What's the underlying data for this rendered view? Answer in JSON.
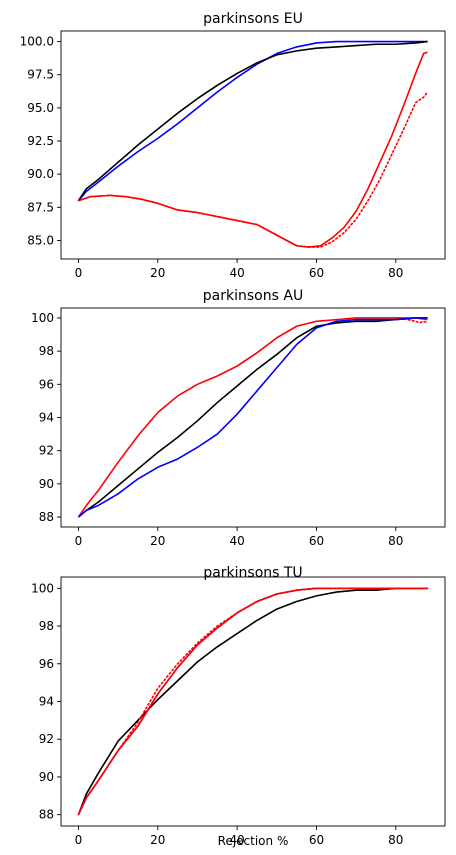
{
  "chart_data": [
    {
      "type": "line",
      "title": "parkinsons EU",
      "xlabel": "",
      "ylabel": "",
      "xlim": [
        -4.4,
        92.4
      ],
      "ylim": [
        83.6,
        100.8
      ],
      "xticks": [
        0,
        20,
        40,
        60,
        80
      ],
      "xtick_labels": [
        "0",
        "20",
        "40",
        "60",
        "80"
      ],
      "yticks": [
        85.0,
        87.5,
        90.0,
        92.5,
        95.0,
        97.5,
        100.0
      ],
      "ytick_labels": [
        "85.0",
        "87.5",
        "90.0",
        "92.5",
        "95.0",
        "97.5",
        "100.0"
      ],
      "series": [
        {
          "color": "#0000ff",
          "dash": "solid",
          "points": [
            [
              0,
              88.0
            ],
            [
              2,
              88.7
            ],
            [
              5,
              89.4
            ],
            [
              10,
              90.6
            ],
            [
              15,
              91.7
            ],
            [
              20,
              92.7
            ],
            [
              25,
              93.8
            ],
            [
              30,
              95.0
            ],
            [
              35,
              96.2
            ],
            [
              40,
              97.3
            ],
            [
              45,
              98.3
            ],
            [
              50,
              99.1
            ],
            [
              55,
              99.6
            ],
            [
              60,
              99.9
            ],
            [
              65,
              100.0
            ],
            [
              70,
              100.0
            ],
            [
              75,
              100.0
            ],
            [
              80,
              100.0
            ],
            [
              85,
              100.0
            ],
            [
              88,
              100.0
            ]
          ]
        },
        {
          "color": "#000000",
          "dash": "solid",
          "points": [
            [
              0,
              88.0
            ],
            [
              2,
              88.9
            ],
            [
              5,
              89.6
            ],
            [
              10,
              90.9
            ],
            [
              15,
              92.2
            ],
            [
              20,
              93.4
            ],
            [
              25,
              94.6
            ],
            [
              30,
              95.7
            ],
            [
              35,
              96.7
            ],
            [
              40,
              97.6
            ],
            [
              45,
              98.4
            ],
            [
              50,
              99.0
            ],
            [
              55,
              99.3
            ],
            [
              60,
              99.5
            ],
            [
              65,
              99.6
            ],
            [
              70,
              99.7
            ],
            [
              75,
              99.8
            ],
            [
              80,
              99.8
            ],
            [
              85,
              99.9
            ],
            [
              88,
              100.0
            ]
          ]
        },
        {
          "color": "#ff0000",
          "dash": "solid",
          "points": [
            [
              0,
              88.0
            ],
            [
              3,
              88.3
            ],
            [
              8,
              88.4
            ],
            [
              12,
              88.3
            ],
            [
              16,
              88.1
            ],
            [
              20,
              87.8
            ],
            [
              25,
              87.3
            ],
            [
              30,
              87.1
            ],
            [
              35,
              86.8
            ],
            [
              40,
              86.5
            ],
            [
              45,
              86.2
            ],
            [
              50,
              85.4
            ],
            [
              55,
              84.6
            ],
            [
              58,
              84.5
            ],
            [
              61,
              84.6
            ],
            [
              64,
              85.2
            ],
            [
              67,
              86.0
            ],
            [
              70,
              87.2
            ],
            [
              73,
              88.9
            ],
            [
              76,
              90.9
            ],
            [
              79,
              92.9
            ],
            [
              82,
              95.2
            ],
            [
              85,
              97.6
            ],
            [
              87,
              99.1
            ],
            [
              88,
              99.2
            ]
          ]
        },
        {
          "color": "#ff0000",
          "dash": "dotted",
          "points": [
            [
              0,
              88.0
            ],
            [
              3,
              88.3
            ],
            [
              8,
              88.4
            ],
            [
              12,
              88.3
            ],
            [
              16,
              88.1
            ],
            [
              20,
              87.8
            ],
            [
              25,
              87.3
            ],
            [
              30,
              87.1
            ],
            [
              35,
              86.8
            ],
            [
              40,
              86.5
            ],
            [
              45,
              86.2
            ],
            [
              50,
              85.4
            ],
            [
              55,
              84.6
            ],
            [
              58,
              84.5
            ],
            [
              61,
              84.5
            ],
            [
              64,
              84.9
            ],
            [
              67,
              85.6
            ],
            [
              70,
              86.6
            ],
            [
              73,
              88.0
            ],
            [
              76,
              89.6
            ],
            [
              79,
              91.5
            ],
            [
              82,
              93.4
            ],
            [
              85,
              95.4
            ],
            [
              87,
              95.8
            ],
            [
              88,
              96.2
            ]
          ]
        }
      ]
    },
    {
      "type": "line",
      "title": "parkinsons AU",
      "xlabel": "",
      "ylabel": "",
      "xlim": [
        -4.4,
        92.4
      ],
      "ylim": [
        87.4,
        100.6
      ],
      "xticks": [
        0,
        20,
        40,
        60,
        80
      ],
      "xtick_labels": [
        "0",
        "20",
        "40",
        "60",
        "80"
      ],
      "yticks": [
        88,
        90,
        92,
        94,
        96,
        98,
        100
      ],
      "ytick_labels": [
        "88",
        "90",
        "92",
        "94",
        "96",
        "98",
        "100"
      ],
      "series": [
        {
          "color": "#ff0000",
          "dash": "solid",
          "points": [
            [
              0,
              88.0
            ],
            [
              2,
              88.7
            ],
            [
              5,
              89.6
            ],
            [
              10,
              91.3
            ],
            [
              15,
              92.9
            ],
            [
              20,
              94.3
            ],
            [
              25,
              95.3
            ],
            [
              30,
              96.0
            ],
            [
              35,
              96.5
            ],
            [
              40,
              97.1
            ],
            [
              45,
              97.9
            ],
            [
              50,
              98.8
            ],
            [
              55,
              99.5
            ],
            [
              60,
              99.8
            ],
            [
              65,
              99.9
            ],
            [
              70,
              100.0
            ],
            [
              75,
              100.0
            ],
            [
              80,
              100.0
            ],
            [
              85,
              100.0
            ],
            [
              88,
              99.9
            ]
          ]
        },
        {
          "color": "#ff0000",
          "dash": "dotted",
          "points": [
            [
              80,
              100.0
            ],
            [
              83,
              99.9
            ],
            [
              85,
              99.8
            ],
            [
              86,
              99.7
            ],
            [
              87,
              99.8
            ],
            [
              88,
              99.7
            ]
          ]
        },
        {
          "color": "#000000",
          "dash": "solid",
          "points": [
            [
              0,
              88.0
            ],
            [
              2,
              88.4
            ],
            [
              5,
              88.9
            ],
            [
              10,
              89.9
            ],
            [
              15,
              90.9
            ],
            [
              20,
              91.9
            ],
            [
              25,
              92.8
            ],
            [
              30,
              93.8
            ],
            [
              35,
              94.9
            ],
            [
              40,
              95.9
            ],
            [
              45,
              96.9
            ],
            [
              50,
              97.8
            ],
            [
              55,
              98.8
            ],
            [
              60,
              99.5
            ],
            [
              65,
              99.7
            ],
            [
              70,
              99.8
            ],
            [
              75,
              99.8
            ],
            [
              80,
              99.9
            ],
            [
              85,
              100.0
            ],
            [
              88,
              100.0
            ]
          ]
        },
        {
          "color": "#0000ff",
          "dash": "solid",
          "points": [
            [
              0,
              88.0
            ],
            [
              2,
              88.4
            ],
            [
              5,
              88.7
            ],
            [
              10,
              89.4
            ],
            [
              15,
              90.3
            ],
            [
              20,
              91.0
            ],
            [
              25,
              91.5
            ],
            [
              30,
              92.2
            ],
            [
              35,
              93.0
            ],
            [
              40,
              94.2
            ],
            [
              45,
              95.6
            ],
            [
              50,
              97.0
            ],
            [
              55,
              98.4
            ],
            [
              60,
              99.4
            ],
            [
              65,
              99.8
            ],
            [
              70,
              99.9
            ],
            [
              75,
              99.9
            ],
            [
              80,
              99.9
            ],
            [
              85,
              100.0
            ],
            [
              88,
              100.0
            ]
          ]
        }
      ]
    },
    {
      "type": "line",
      "title": "parkinsons TU",
      "xlabel": "Rejection %",
      "ylabel": "",
      "xlim": [
        -4.4,
        92.4
      ],
      "ylim": [
        87.4,
        100.6
      ],
      "xticks": [
        0,
        20,
        40,
        60,
        80
      ],
      "xtick_labels": [
        "0",
        "20",
        "40",
        "60",
        "80"
      ],
      "yticks": [
        88,
        90,
        92,
        94,
        96,
        98,
        100
      ],
      "ytick_labels": [
        "88",
        "90",
        "92",
        "94",
        "96",
        "98",
        "100"
      ],
      "series": [
        {
          "color": "#000000",
          "dash": "solid",
          "points": [
            [
              0,
              88.0
            ],
            [
              2,
              89.1
            ],
            [
              5,
              90.2
            ],
            [
              10,
              91.9
            ],
            [
              15,
              93.0
            ],
            [
              20,
              94.1
            ],
            [
              25,
              95.1
            ],
            [
              30,
              96.1
            ],
            [
              35,
              96.9
            ],
            [
              40,
              97.6
            ],
            [
              45,
              98.3
            ],
            [
              50,
              98.9
            ],
            [
              55,
              99.3
            ],
            [
              60,
              99.6
            ],
            [
              65,
              99.8
            ],
            [
              70,
              99.9
            ],
            [
              75,
              99.9
            ],
            [
              80,
              100.0
            ],
            [
              85,
              100.0
            ],
            [
              88,
              100.0
            ]
          ]
        },
        {
          "color": "#0000ff",
          "dash": "solid",
          "points": [
            [
              0,
              88.0
            ],
            [
              2,
              88.9
            ],
            [
              5,
              89.8
            ],
            [
              10,
              91.4
            ],
            [
              15,
              92.7
            ],
            [
              20,
              94.4
            ],
            [
              25,
              95.8
            ],
            [
              30,
              97.0
            ],
            [
              35,
              97.9
            ],
            [
              40,
              98.7
            ],
            [
              45,
              99.3
            ],
            [
              50,
              99.7
            ],
            [
              55,
              99.9
            ],
            [
              60,
              100.0
            ],
            [
              65,
              100.0
            ],
            [
              70,
              100.0
            ],
            [
              75,
              100.0
            ],
            [
              80,
              100.0
            ],
            [
              85,
              100.0
            ],
            [
              88,
              100.0
            ]
          ]
        },
        {
          "color": "#ff0000",
          "dash": "solid",
          "points": [
            [
              0,
              88.0
            ],
            [
              2,
              88.9
            ],
            [
              5,
              89.8
            ],
            [
              10,
              91.4
            ],
            [
              15,
              92.7
            ],
            [
              20,
              94.4
            ],
            [
              25,
              95.8
            ],
            [
              30,
              97.0
            ],
            [
              35,
              97.9
            ],
            [
              40,
              98.7
            ],
            [
              45,
              99.3
            ],
            [
              50,
              99.7
            ],
            [
              55,
              99.9
            ],
            [
              60,
              100.0
            ],
            [
              65,
              100.0
            ],
            [
              70,
              100.0
            ],
            [
              75,
              100.0
            ],
            [
              80,
              100.0
            ],
            [
              85,
              100.0
            ],
            [
              88,
              100.0
            ]
          ]
        },
        {
          "color": "#ff0000",
          "dash": "dotted",
          "points": [
            [
              0,
              88.0
            ],
            [
              2,
              88.9
            ],
            [
              5,
              89.8
            ],
            [
              10,
              91.4
            ],
            [
              15,
              92.9
            ],
            [
              20,
              94.7
            ],
            [
              25,
              96.0
            ],
            [
              30,
              97.1
            ],
            [
              35,
              98.0
            ],
            [
              40,
              98.7
            ],
            [
              45,
              99.3
            ],
            [
              50,
              99.7
            ],
            [
              55,
              99.9
            ],
            [
              60,
              100.0
            ],
            [
              65,
              100.0
            ],
            [
              70,
              100.0
            ],
            [
              75,
              100.0
            ],
            [
              80,
              100.0
            ],
            [
              85,
              100.0
            ],
            [
              88,
              100.0
            ]
          ]
        }
      ]
    }
  ]
}
